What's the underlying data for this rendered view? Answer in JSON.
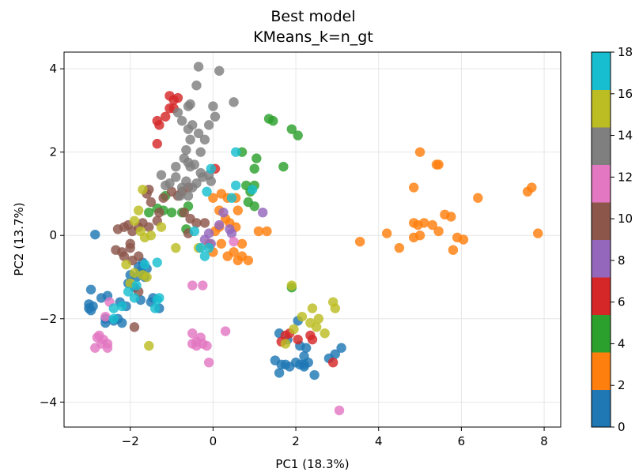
{
  "chart_data": {
    "type": "scatter",
    "title": "Best model",
    "subtitle": "KMeans_k=n_gt",
    "xlabel": "PC1 (18.3%)",
    "ylabel": "PC2 (13.7%)",
    "xlim": [
      -3.6,
      8.4
    ],
    "ylim": [
      -4.6,
      4.4
    ],
    "xticks": [
      -2,
      0,
      2,
      4,
      6,
      8
    ],
    "xtick_labels": [
      "−2",
      "0",
      "2",
      "4",
      "6",
      "8"
    ],
    "yticks": [
      -4,
      -2,
      0,
      2,
      4
    ],
    "ytick_labels": [
      "−4",
      "−2",
      "0",
      "2",
      "4"
    ],
    "grid": true,
    "colorbar": {
      "min": 0,
      "max": 18,
      "ticks": [
        0,
        2,
        4,
        6,
        8,
        10,
        12,
        14,
        16,
        18
      ],
      "tick_labels": [
        "0",
        "2",
        "4",
        "6",
        "8",
        "10",
        "12",
        "14",
        "16",
        "18"
      ],
      "colormap": "tab10",
      "colors": [
        "#1f77b4",
        "#ff7f0e",
        "#2ca02c",
        "#d62728",
        "#9467bd",
        "#8c564b",
        "#e377c2",
        "#7f7f7f",
        "#bcbd22",
        "#17becf"
      ]
    },
    "series": [
      {
        "cluster": 0,
        "color": "#1f77b4",
        "points": [
          [
            -2.85,
            0.02
          ],
          [
            -3.0,
            -1.65
          ],
          [
            -3.0,
            -1.75
          ],
          [
            -2.95,
            -1.8
          ],
          [
            -2.9,
            -1.7
          ],
          [
            -2.95,
            -1.3
          ],
          [
            -2.7,
            -1.5
          ],
          [
            -2.55,
            -1.45
          ],
          [
            -2.6,
            -2.0
          ],
          [
            -2.6,
            -2.1
          ],
          [
            -2.4,
            -2.05
          ],
          [
            -2.3,
            -2.0
          ],
          [
            -2.2,
            -2.1
          ],
          [
            -2.25,
            -1.6
          ],
          [
            -2.1,
            -1.7
          ],
          [
            -2.05,
            -1.15
          ],
          [
            -2.0,
            -0.95
          ],
          [
            -1.85,
            -1.0
          ],
          [
            -1.75,
            -0.85
          ],
          [
            -1.6,
            -0.8
          ],
          [
            -1.65,
            -1.0
          ],
          [
            -1.9,
            -1.25
          ],
          [
            -1.75,
            -1.55
          ],
          [
            -1.5,
            -1.6
          ],
          [
            -1.45,
            -1.5
          ],
          [
            -1.3,
            -1.75
          ],
          [
            -1.8,
            -0.75
          ],
          [
            -1.7,
            -0.65
          ],
          [
            1.5,
            -3.0
          ],
          [
            1.65,
            -3.1
          ],
          [
            1.6,
            -3.3
          ],
          [
            1.75,
            -3.1
          ],
          [
            1.85,
            -3.15
          ],
          [
            2.0,
            -3.05
          ],
          [
            2.1,
            -3.1
          ],
          [
            2.2,
            -3.15
          ],
          [
            2.3,
            -3.05
          ],
          [
            2.45,
            -3.35
          ],
          [
            2.2,
            -2.9
          ],
          [
            2.25,
            -2.7
          ],
          [
            2.1,
            -2.65
          ],
          [
            2.05,
            -2.05
          ],
          [
            1.6,
            -2.35
          ],
          [
            1.8,
            -2.5
          ],
          [
            2.8,
            -2.95
          ],
          [
            2.95,
            -2.85
          ],
          [
            3.1,
            -2.7
          ],
          [
            2.2,
            -3.1
          ]
        ]
      },
      {
        "cluster": 1,
        "color": "#ff7f0e",
        "points": [
          [
            0.0,
            0.9
          ],
          [
            0.2,
            1.0
          ],
          [
            0.35,
            0.9
          ],
          [
            0.55,
            0.9
          ],
          [
            0.15,
            0.6
          ],
          [
            0.6,
            0.6
          ],
          [
            0.4,
            0.3
          ],
          [
            0.3,
            0.4
          ],
          [
            0.15,
            0.2
          ],
          [
            0.05,
            0.1
          ],
          [
            -0.1,
            -0.2
          ],
          [
            0.0,
            -0.4
          ],
          [
            0.2,
            -0.2
          ],
          [
            0.35,
            -0.5
          ],
          [
            0.5,
            -0.4
          ],
          [
            0.7,
            -0.5
          ],
          [
            0.6,
            -0.6
          ],
          [
            0.85,
            -0.6
          ],
          [
            0.7,
            -0.2
          ],
          [
            0.55,
            0.2
          ],
          [
            1.1,
            0.1
          ],
          [
            1.3,
            0.1
          ],
          [
            3.55,
            -0.15
          ],
          [
            4.2,
            0.05
          ],
          [
            4.5,
            -0.3
          ],
          [
            4.85,
            0.3
          ],
          [
            4.95,
            0.25
          ],
          [
            5.1,
            0.3
          ],
          [
            5.0,
            0.0
          ],
          [
            4.85,
            -0.05
          ],
          [
            5.3,
            0.25
          ],
          [
            5.45,
            0.1
          ],
          [
            5.6,
            0.5
          ],
          [
            5.75,
            0.45
          ],
          [
            5.8,
            -0.35
          ],
          [
            5.9,
            -0.05
          ],
          [
            6.05,
            -0.1
          ],
          [
            6.4,
            0.9
          ],
          [
            7.6,
            1.05
          ],
          [
            7.7,
            1.15
          ],
          [
            7.85,
            0.05
          ],
          [
            4.85,
            1.15
          ],
          [
            5.0,
            2.0
          ],
          [
            5.4,
            1.7
          ],
          [
            5.45,
            1.7
          ]
        ]
      },
      {
        "cluster": 2,
        "color": "#2ca02c",
        "points": [
          [
            0.7,
            2.0
          ],
          [
            1.05,
            1.85
          ],
          [
            1.0,
            1.6
          ],
          [
            1.35,
            2.8
          ],
          [
            1.45,
            2.75
          ],
          [
            1.9,
            2.55
          ],
          [
            2.05,
            2.4
          ],
          [
            1.7,
            1.65
          ],
          [
            0.8,
            1.2
          ],
          [
            1.0,
            1.2
          ],
          [
            0.9,
            1.05
          ],
          [
            0.85,
            0.8
          ],
          [
            1.0,
            0.7
          ],
          [
            -0.6,
            0.7
          ],
          [
            -0.75,
            0.55
          ],
          [
            -1.0,
            0.55
          ],
          [
            -1.2,
            0.6
          ],
          [
            -1.35,
            0.65
          ],
          [
            -1.55,
            0.55
          ],
          [
            -0.65,
            0.15
          ],
          [
            -1.15,
            0.95
          ],
          [
            1.9,
            -1.25
          ]
        ]
      },
      {
        "cluster": 3,
        "color": "#d62728",
        "points": [
          [
            -1.3,
            2.65
          ],
          [
            -1.15,
            2.85
          ],
          [
            -1.05,
            3.05
          ],
          [
            -0.95,
            3.05
          ],
          [
            -1.05,
            3.35
          ],
          [
            -0.85,
            3.3
          ],
          [
            -0.95,
            3.25
          ],
          [
            -1.35,
            2.75
          ],
          [
            -1.35,
            2.2
          ],
          [
            0.05,
            1.6
          ],
          [
            1.65,
            -2.55
          ],
          [
            1.75,
            -2.4
          ],
          [
            1.85,
            -2.35
          ],
          [
            2.05,
            -2.5
          ],
          [
            2.35,
            -2.4
          ],
          [
            2.4,
            -2.5
          ],
          [
            2.9,
            -3.05
          ]
        ]
      },
      {
        "cluster": 4,
        "color": "#9467bd",
        "points": [
          [
            -0.2,
            -0.1
          ],
          [
            -0.1,
            0.05
          ],
          [
            -0.05,
            -0.2
          ],
          [
            0.4,
            0.15
          ],
          [
            0.45,
            0.05
          ],
          [
            0.15,
            0.25
          ],
          [
            1.2,
            0.55
          ],
          [
            0.25,
            0.55
          ]
        ]
      },
      {
        "cluster": 5,
        "color": "#8c564b",
        "points": [
          [
            -2.3,
            0.15
          ],
          [
            -2.15,
            0.2
          ],
          [
            -2.05,
            0.25
          ],
          [
            -1.95,
            0.1
          ],
          [
            -1.8,
            0.2
          ],
          [
            -1.7,
            0.3
          ],
          [
            -1.55,
            0.2
          ],
          [
            -1.35,
            0.35
          ],
          [
            -1.3,
            0.55
          ],
          [
            -1.5,
            0.8
          ],
          [
            -1.6,
            1.0
          ],
          [
            -1.55,
            1.1
          ],
          [
            -1.2,
            0.9
          ],
          [
            -1.0,
            1.05
          ],
          [
            -0.85,
            0.95
          ],
          [
            -0.75,
            1.05
          ],
          [
            -0.6,
            1.15
          ],
          [
            -0.7,
            0.55
          ],
          [
            -0.55,
            0.4
          ],
          [
            -0.4,
            0.3
          ],
          [
            -0.6,
            0.05
          ],
          [
            -0.2,
            0.3
          ],
          [
            -2.35,
            -0.35
          ],
          [
            -2.2,
            -0.4
          ],
          [
            -2.15,
            -0.5
          ],
          [
            -2.0,
            -0.3
          ],
          [
            -1.95,
            -0.6
          ],
          [
            -1.8,
            -0.5
          ],
          [
            -2.0,
            -0.2
          ],
          [
            -1.9,
            -2.2
          ],
          [
            -1.8,
            -1.35
          ]
        ]
      },
      {
        "cluster": 6,
        "color": "#e377c2",
        "points": [
          [
            -2.5,
            -1.6
          ],
          [
            -2.6,
            -1.95
          ],
          [
            -2.75,
            -2.4
          ],
          [
            -2.8,
            -2.45
          ],
          [
            -2.65,
            -2.5
          ],
          [
            -2.55,
            -2.6
          ],
          [
            -2.7,
            -2.6
          ],
          [
            -2.85,
            -2.7
          ],
          [
            -2.55,
            -2.7
          ],
          [
            -0.5,
            -2.35
          ],
          [
            -0.4,
            -2.55
          ],
          [
            -0.3,
            -2.45
          ],
          [
            -0.25,
            -2.6
          ],
          [
            -0.4,
            -2.65
          ],
          [
            -0.5,
            -2.6
          ],
          [
            -0.15,
            -2.65
          ],
          [
            -0.1,
            -3.05
          ],
          [
            0.3,
            -2.3
          ],
          [
            -0.5,
            -1.2
          ],
          [
            -0.25,
            -1.2
          ],
          [
            0.5,
            -0.15
          ],
          [
            3.05,
            -4.2
          ]
        ]
      },
      {
        "cluster": 7,
        "color": "#7f7f7f",
        "points": [
          [
            -0.35,
            4.05
          ],
          [
            0.15,
            3.95
          ],
          [
            -0.4,
            3.6
          ],
          [
            -0.6,
            3.1
          ],
          [
            -0.55,
            3.15
          ],
          [
            -0.75,
            2.75
          ],
          [
            -0.85,
            2.95
          ],
          [
            -0.6,
            2.55
          ],
          [
            -0.5,
            2.65
          ],
          [
            -0.35,
            2.45
          ],
          [
            -0.55,
            2.3
          ],
          [
            -0.65,
            2.05
          ],
          [
            -0.7,
            1.85
          ],
          [
            -0.6,
            1.75
          ],
          [
            -0.3,
            2.0
          ],
          [
            -0.2,
            2.3
          ],
          [
            -0.1,
            2.65
          ],
          [
            0.0,
            3.1
          ],
          [
            0.5,
            3.2
          ],
          [
            0.05,
            2.85
          ],
          [
            -0.55,
            1.65
          ],
          [
            -0.45,
            1.7
          ],
          [
            -0.3,
            1.5
          ],
          [
            -0.25,
            1.4
          ],
          [
            -0.1,
            1.45
          ],
          [
            -0.05,
            1.3
          ],
          [
            -0.4,
            1.25
          ],
          [
            -0.5,
            1.15
          ],
          [
            -0.65,
            1.3
          ],
          [
            -0.75,
            1.15
          ],
          [
            -0.9,
            1.65
          ],
          [
            -0.9,
            1.4
          ],
          [
            -1.05,
            1.25
          ],
          [
            -1.25,
            1.45
          ],
          [
            -1.15,
            1.2
          ],
          [
            -0.8,
            0.95
          ],
          [
            -0.6,
            0.95
          ]
        ]
      },
      {
        "cluster": 8,
        "color": "#bcbd22",
        "points": [
          [
            -1.7,
            1.1
          ],
          [
            -1.8,
            0.6
          ],
          [
            -1.9,
            0.35
          ],
          [
            -1.75,
            0.1
          ],
          [
            -1.65,
            -0.05
          ],
          [
            -1.5,
            0.0
          ],
          [
            -1.25,
            0.2
          ],
          [
            -0.9,
            -0.3
          ],
          [
            -2.1,
            -0.7
          ],
          [
            -1.9,
            -0.9
          ],
          [
            -1.7,
            -0.95
          ],
          [
            -1.6,
            -1.0
          ],
          [
            -2.0,
            -1.15
          ],
          [
            -1.55,
            -2.65
          ],
          [
            1.9,
            -1.2
          ],
          [
            2.15,
            -1.95
          ],
          [
            1.95,
            -2.25
          ],
          [
            2.35,
            -2.1
          ],
          [
            2.5,
            -2.2
          ],
          [
            2.7,
            -2.35
          ],
          [
            2.55,
            -2.0
          ],
          [
            2.9,
            -1.6
          ],
          [
            2.95,
            -1.75
          ],
          [
            2.4,
            -1.75
          ],
          [
            1.75,
            -2.6
          ],
          [
            -0.35,
            -0.3
          ]
        ]
      },
      {
        "cluster": 9,
        "color": "#17becf",
        "points": [
          [
            -0.15,
            1.05
          ],
          [
            -0.05,
            1.6
          ],
          [
            0.45,
            0.9
          ],
          [
            0.55,
            1.2
          ],
          [
            0.95,
            1.1
          ],
          [
            0.55,
            2.0
          ],
          [
            -0.45,
            0.1
          ],
          [
            -0.3,
            -0.3
          ],
          [
            -0.2,
            -0.5
          ],
          [
            -0.1,
            -0.3
          ],
          [
            -1.35,
            -0.65
          ],
          [
            -1.65,
            -0.7
          ],
          [
            -1.85,
            -1.2
          ],
          [
            -2.05,
            -1.35
          ],
          [
            -1.9,
            -1.5
          ],
          [
            -2.2,
            -1.7
          ],
          [
            -2.4,
            -1.75
          ],
          [
            -2.4,
            -2.0
          ],
          [
            -1.4,
            -1.75
          ],
          [
            -1.35,
            -1.55
          ],
          [
            -1.3,
            -1.5
          ]
        ]
      }
    ]
  }
}
